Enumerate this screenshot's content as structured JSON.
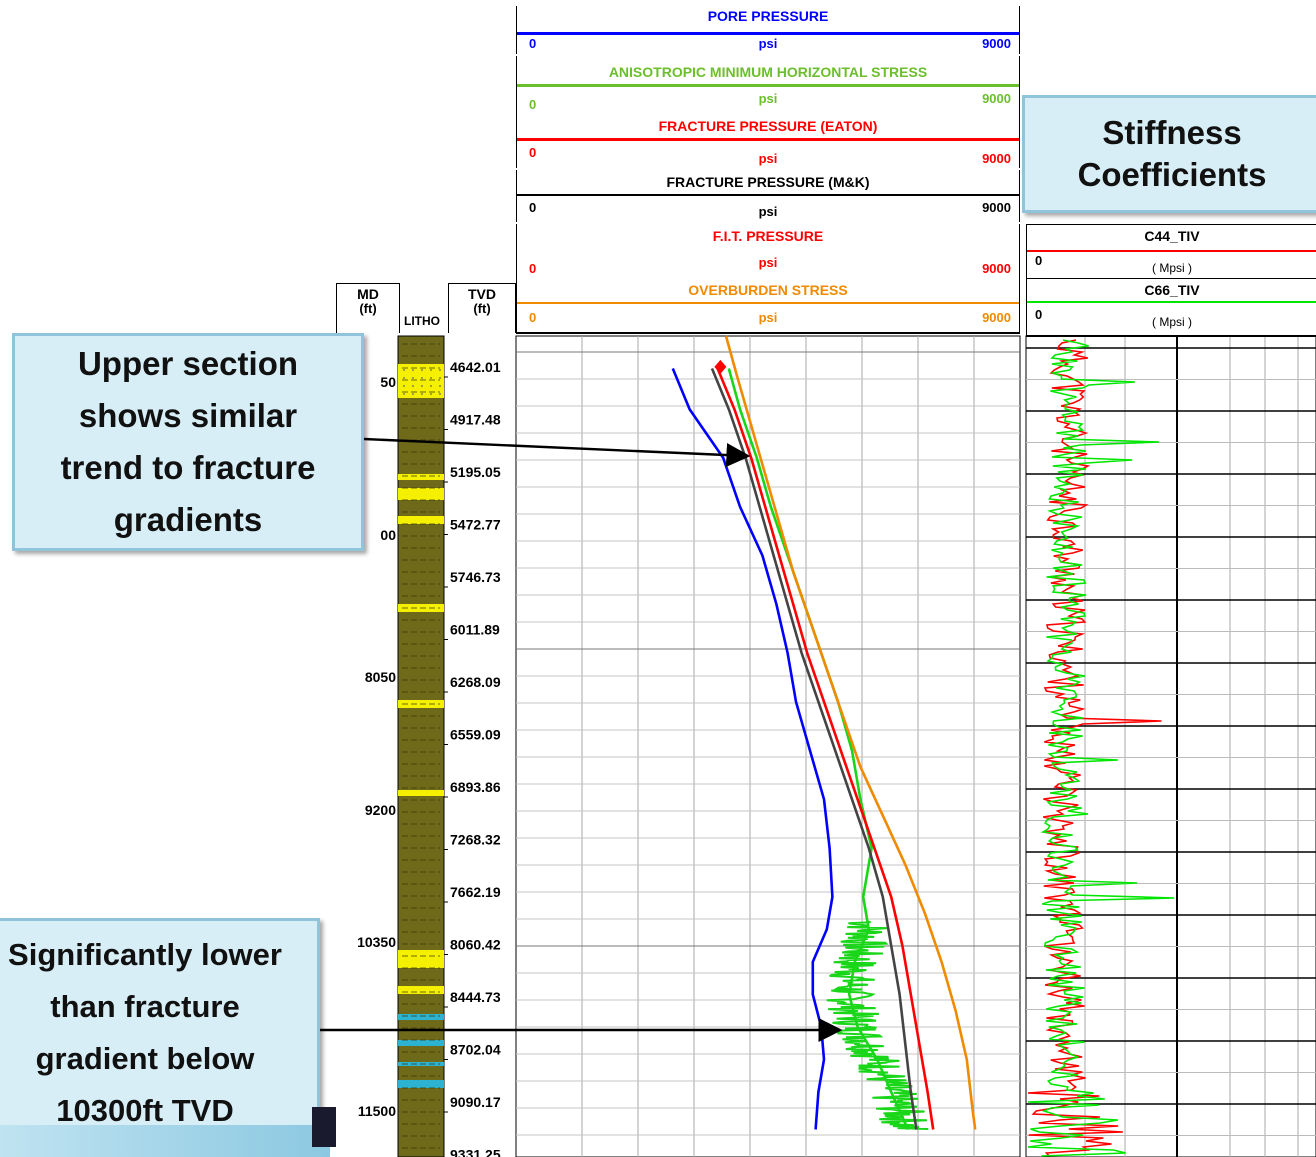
{
  "colors": {
    "pore": "#0000ff",
    "min_horizontal": "#6cbf2c",
    "eaton": "#ff0000",
    "mk": "#000000",
    "fit": "#ff0000",
    "overburden": "#f08a00",
    "c44": "#ff0000",
    "c66": "#00e600",
    "callout_bg": "#d7eef6",
    "callout_border": "#8fc4db",
    "litho_shale": "#6e6a1a",
    "litho_sand": "#f4f000",
    "litho_carbonate": "#2bb3d1"
  },
  "depth_header": {
    "md_label": "MD",
    "md_unit": "(ft)",
    "litho_label": "LITHO",
    "tvd_label": "TVD",
    "tvd_unit": "(ft)"
  },
  "tracks": [
    {
      "title": "PORE PRESSURE",
      "min": "0",
      "unit": "psi",
      "max": "9000",
      "color_key": "pore"
    },
    {
      "title": "ANISOTROPIC MINIMUM HORIZONTAL STRESS",
      "min": "0",
      "unit": "psi",
      "max": "9000",
      "color_key": "min_horizontal"
    },
    {
      "title": "FRACTURE PRESSURE (EATON)",
      "min": "0",
      "unit": "psi",
      "max": "9000",
      "color_key": "eaton"
    },
    {
      "title": "FRACTURE PRESSURE (M&K)",
      "min": "0",
      "unit": "psi",
      "max": "9000",
      "color_key": "mk"
    },
    {
      "title": "F.I.T. PRESSURE",
      "min": "0",
      "unit": "psi",
      "max": "9000",
      "color_key": "fit"
    },
    {
      "title": "OVERBURDEN STRESS",
      "min": "0",
      "unit": "psi",
      "max": "9000",
      "color_key": "overburden"
    }
  ],
  "stiffness_tracks": [
    {
      "title": "C44_TIV",
      "min": "0",
      "unit": "( Mpsi )",
      "color_key": "c44"
    },
    {
      "title": "C66_TIV",
      "min": "0",
      "unit": "( Mpsi )",
      "color_key": "c66"
    }
  ],
  "md_labels": [
    {
      "label": "50",
      "tvd": 4642
    },
    {
      "label": "00",
      "tvd": 5473
    },
    {
      "label": "8050",
      "tvd": 6268
    },
    {
      "label": "9200",
      "tvd": 7268
    },
    {
      "label": "10350",
      "tvd": 8445
    },
    {
      "label": "11500",
      "tvd": 9331
    }
  ],
  "tvd_labels": [
    "4642.01",
    "4917.48",
    "5195.05",
    "5472.77",
    "5746.73",
    "6011.89",
    "6268.09",
    "6559.09",
    "6893.86",
    "7268.32",
    "7662.19",
    "8060.42",
    "8444.73",
    "8702.04",
    "9090.17",
    "9331.25"
  ],
  "callouts": {
    "stiffness": "Stiffness Coefficients",
    "upper": "Upper section shows similar trend to fracture gradients",
    "lower": "Significantly lower than fracture gradient below 10300ft TVD"
  },
  "chart_data": [
    {
      "type": "line",
      "title": "",
      "xlabel": "psi",
      "ylabel": "TVD (ft)",
      "xlim": [
        0,
        9000
      ],
      "ylim": [
        4450,
        9500
      ],
      "y_reversed": true,
      "series": [
        {
          "name": "PORE PRESSURE",
          "y": [
            4650,
            4900,
            5200,
            5500,
            5800,
            6100,
            6400,
            6700,
            7000,
            7300,
            7600,
            7900,
            8100,
            8300,
            8500,
            8700,
            8900,
            9100,
            9331
          ],
          "x": [
            2800,
            3100,
            3700,
            4000,
            4400,
            4650,
            4850,
            5000,
            5250,
            5500,
            5600,
            5650,
            5550,
            5300,
            5300,
            5450,
            5500,
            5400,
            5350
          ]
        },
        {
          "name": "ANISOTROPIC MINIMUM HORIZONTAL STRESS",
          "y": [
            4650,
            4900,
            5200,
            5500,
            5800,
            6100,
            6400,
            6700,
            7000,
            7300,
            7600,
            7900,
            8100,
            8300,
            8500,
            8700,
            8900,
            9100,
            9331
          ],
          "x": [
            3800,
            4000,
            4300,
            4550,
            4850,
            5150,
            5450,
            5750,
            6000,
            6150,
            6350,
            6200,
            6300,
            6050,
            5950,
            6100,
            6450,
            6700,
            7000
          ]
        },
        {
          "name": "FRACTURE PRESSURE (EATON)",
          "y": [
            4650,
            4900,
            5200,
            5500,
            5800,
            6100,
            6400,
            6700,
            7000,
            7300,
            7600,
            7900,
            8200,
            8500,
            8800,
            9100,
            9331
          ],
          "x": [
            3600,
            3900,
            4200,
            4450,
            4700,
            4950,
            5200,
            5500,
            5800,
            6100,
            6400,
            6700,
            6900,
            7050,
            7200,
            7350,
            7450
          ]
        },
        {
          "name": "FRACTURE PRESSURE (M&K)",
          "y": [
            4650,
            4900,
            5200,
            5500,
            5800,
            6100,
            6400,
            6700,
            7000,
            7300,
            7600,
            7900,
            8200,
            8500,
            8800,
            9100,
            9331
          ],
          "x": [
            3500,
            3800,
            4100,
            4350,
            4600,
            4850,
            5100,
            5400,
            5700,
            6000,
            6300,
            6550,
            6700,
            6850,
            6950,
            7050,
            7150
          ]
        },
        {
          "name": "F.I.T. PRESSURE",
          "y": [
            4640
          ],
          "x": [
            3650
          ]
        },
        {
          "name": "OVERBURDEN STRESS",
          "y": [
            4450,
            4700,
            5000,
            5300,
            5600,
            5900,
            6200,
            6500,
            6800,
            7100,
            7400,
            7700,
            8000,
            8300,
            8600,
            8900,
            9200,
            9331
          ],
          "x": [
            3750,
            3950,
            4200,
            4450,
            4700,
            4950,
            5250,
            5550,
            5850,
            6150,
            6550,
            6950,
            7300,
            7600,
            7850,
            8050,
            8150,
            8200
          ]
        }
      ]
    },
    {
      "type": "line",
      "title": "",
      "xlabel": "( Mpsi )",
      "ylabel": "TVD (ft)",
      "ylim": [
        4450,
        9500
      ],
      "y_reversed": true,
      "series": [
        {
          "name": "C44_TIV"
        },
        {
          "name": "C66_TIV"
        }
      ]
    }
  ]
}
